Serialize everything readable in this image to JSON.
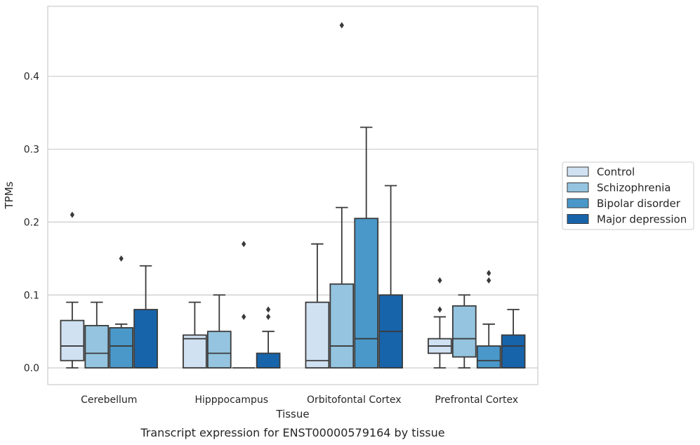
{
  "caption": "Transcript expression for ENST00000579164 by tissue",
  "chart_data": {
    "type": "boxplot",
    "xlabel": "Tissue",
    "ylabel": "TPMs",
    "ylim": [
      -0.023,
      0.496
    ],
    "yticks": [
      0.0,
      0.1,
      0.2,
      0.3,
      0.4
    ],
    "ytick_labels": [
      "0.0",
      "0.1",
      "0.2",
      "0.3",
      "0.4"
    ],
    "grid": "horizontal",
    "legend_position": "right",
    "categories": [
      "Cerebellum",
      "Hipppocampus",
      "Orbitofontal Cortex",
      "Prefrontal Cortex"
    ],
    "series": [
      {
        "name": "Control",
        "color": "#d0e1f2",
        "boxes": [
          {
            "whislo": 0.0,
            "q1": 0.01,
            "med": 0.03,
            "q3": 0.065,
            "whishi": 0.09,
            "fliers": [
              0.21
            ]
          },
          {
            "whislo": 0.0,
            "q1": 0.0,
            "med": 0.04,
            "q3": 0.045,
            "whishi": 0.09,
            "fliers": []
          },
          {
            "whislo": 0.0,
            "q1": 0.0,
            "med": 0.01,
            "q3": 0.09,
            "whishi": 0.17,
            "fliers": []
          },
          {
            "whislo": 0.0,
            "q1": 0.02,
            "med": 0.03,
            "q3": 0.04,
            "whishi": 0.07,
            "fliers": [
              0.08,
              0.12
            ]
          }
        ]
      },
      {
        "name": "Schizophrenia",
        "color": "#94c4df",
        "boxes": [
          {
            "whislo": 0.0,
            "q1": 0.0,
            "med": 0.02,
            "q3": 0.058,
            "whishi": 0.09,
            "fliers": []
          },
          {
            "whislo": 0.0,
            "q1": 0.0,
            "med": 0.02,
            "q3": 0.05,
            "whishi": 0.1,
            "fliers": []
          },
          {
            "whislo": 0.0,
            "q1": 0.0,
            "med": 0.03,
            "q3": 0.115,
            "whishi": 0.22,
            "fliers": [
              0.47
            ]
          },
          {
            "whislo": 0.0,
            "q1": 0.015,
            "med": 0.04,
            "q3": 0.085,
            "whishi": 0.1,
            "fliers": []
          }
        ]
      },
      {
        "name": "Bipolar disorder",
        "color": "#4a98c9",
        "boxes": [
          {
            "whislo": 0.0,
            "q1": 0.0,
            "med": 0.03,
            "q3": 0.055,
            "whishi": 0.06,
            "fliers": [
              0.15
            ]
          },
          {
            "whislo": 0.0,
            "q1": 0.0,
            "med": 0.0,
            "q3": 0.0,
            "whishi": 0.0,
            "fliers": [
              0.17
            ]
          },
          {
            "whislo": 0.0,
            "q1": 0.0,
            "med": 0.04,
            "q3": 0.205,
            "whishi": 0.33,
            "fliers": []
          },
          {
            "whislo": 0.0,
            "q1": 0.0,
            "med": 0.01,
            "q3": 0.03,
            "whishi": 0.06,
            "fliers": [
              0.12,
              0.13
            ]
          }
        ]
      },
      {
        "name": "Major depression",
        "color": "#1764ab",
        "boxes": [
          {
            "whislo": 0.0,
            "q1": 0.0,
            "med": 0.0,
            "q3": 0.08,
            "whishi": 0.14,
            "fliers": []
          },
          {
            "whislo": 0.0,
            "q1": 0.0,
            "med": 0.0,
            "q3": 0.02,
            "whishi": 0.05,
            "fliers": [
              0.07,
              0.08
            ]
          },
          {
            "whislo": 0.0,
            "q1": 0.0,
            "med": 0.05,
            "q3": 0.1,
            "whishi": 0.25,
            "fliers": []
          },
          {
            "whislo": 0.0,
            "q1": 0.0,
            "med": 0.03,
            "q3": 0.045,
            "whishi": 0.08,
            "fliers": []
          }
        ]
      }
    ],
    "extra_fliers": [
      {
        "series": 2,
        "category": 1,
        "value": 0.07
      }
    ]
  }
}
